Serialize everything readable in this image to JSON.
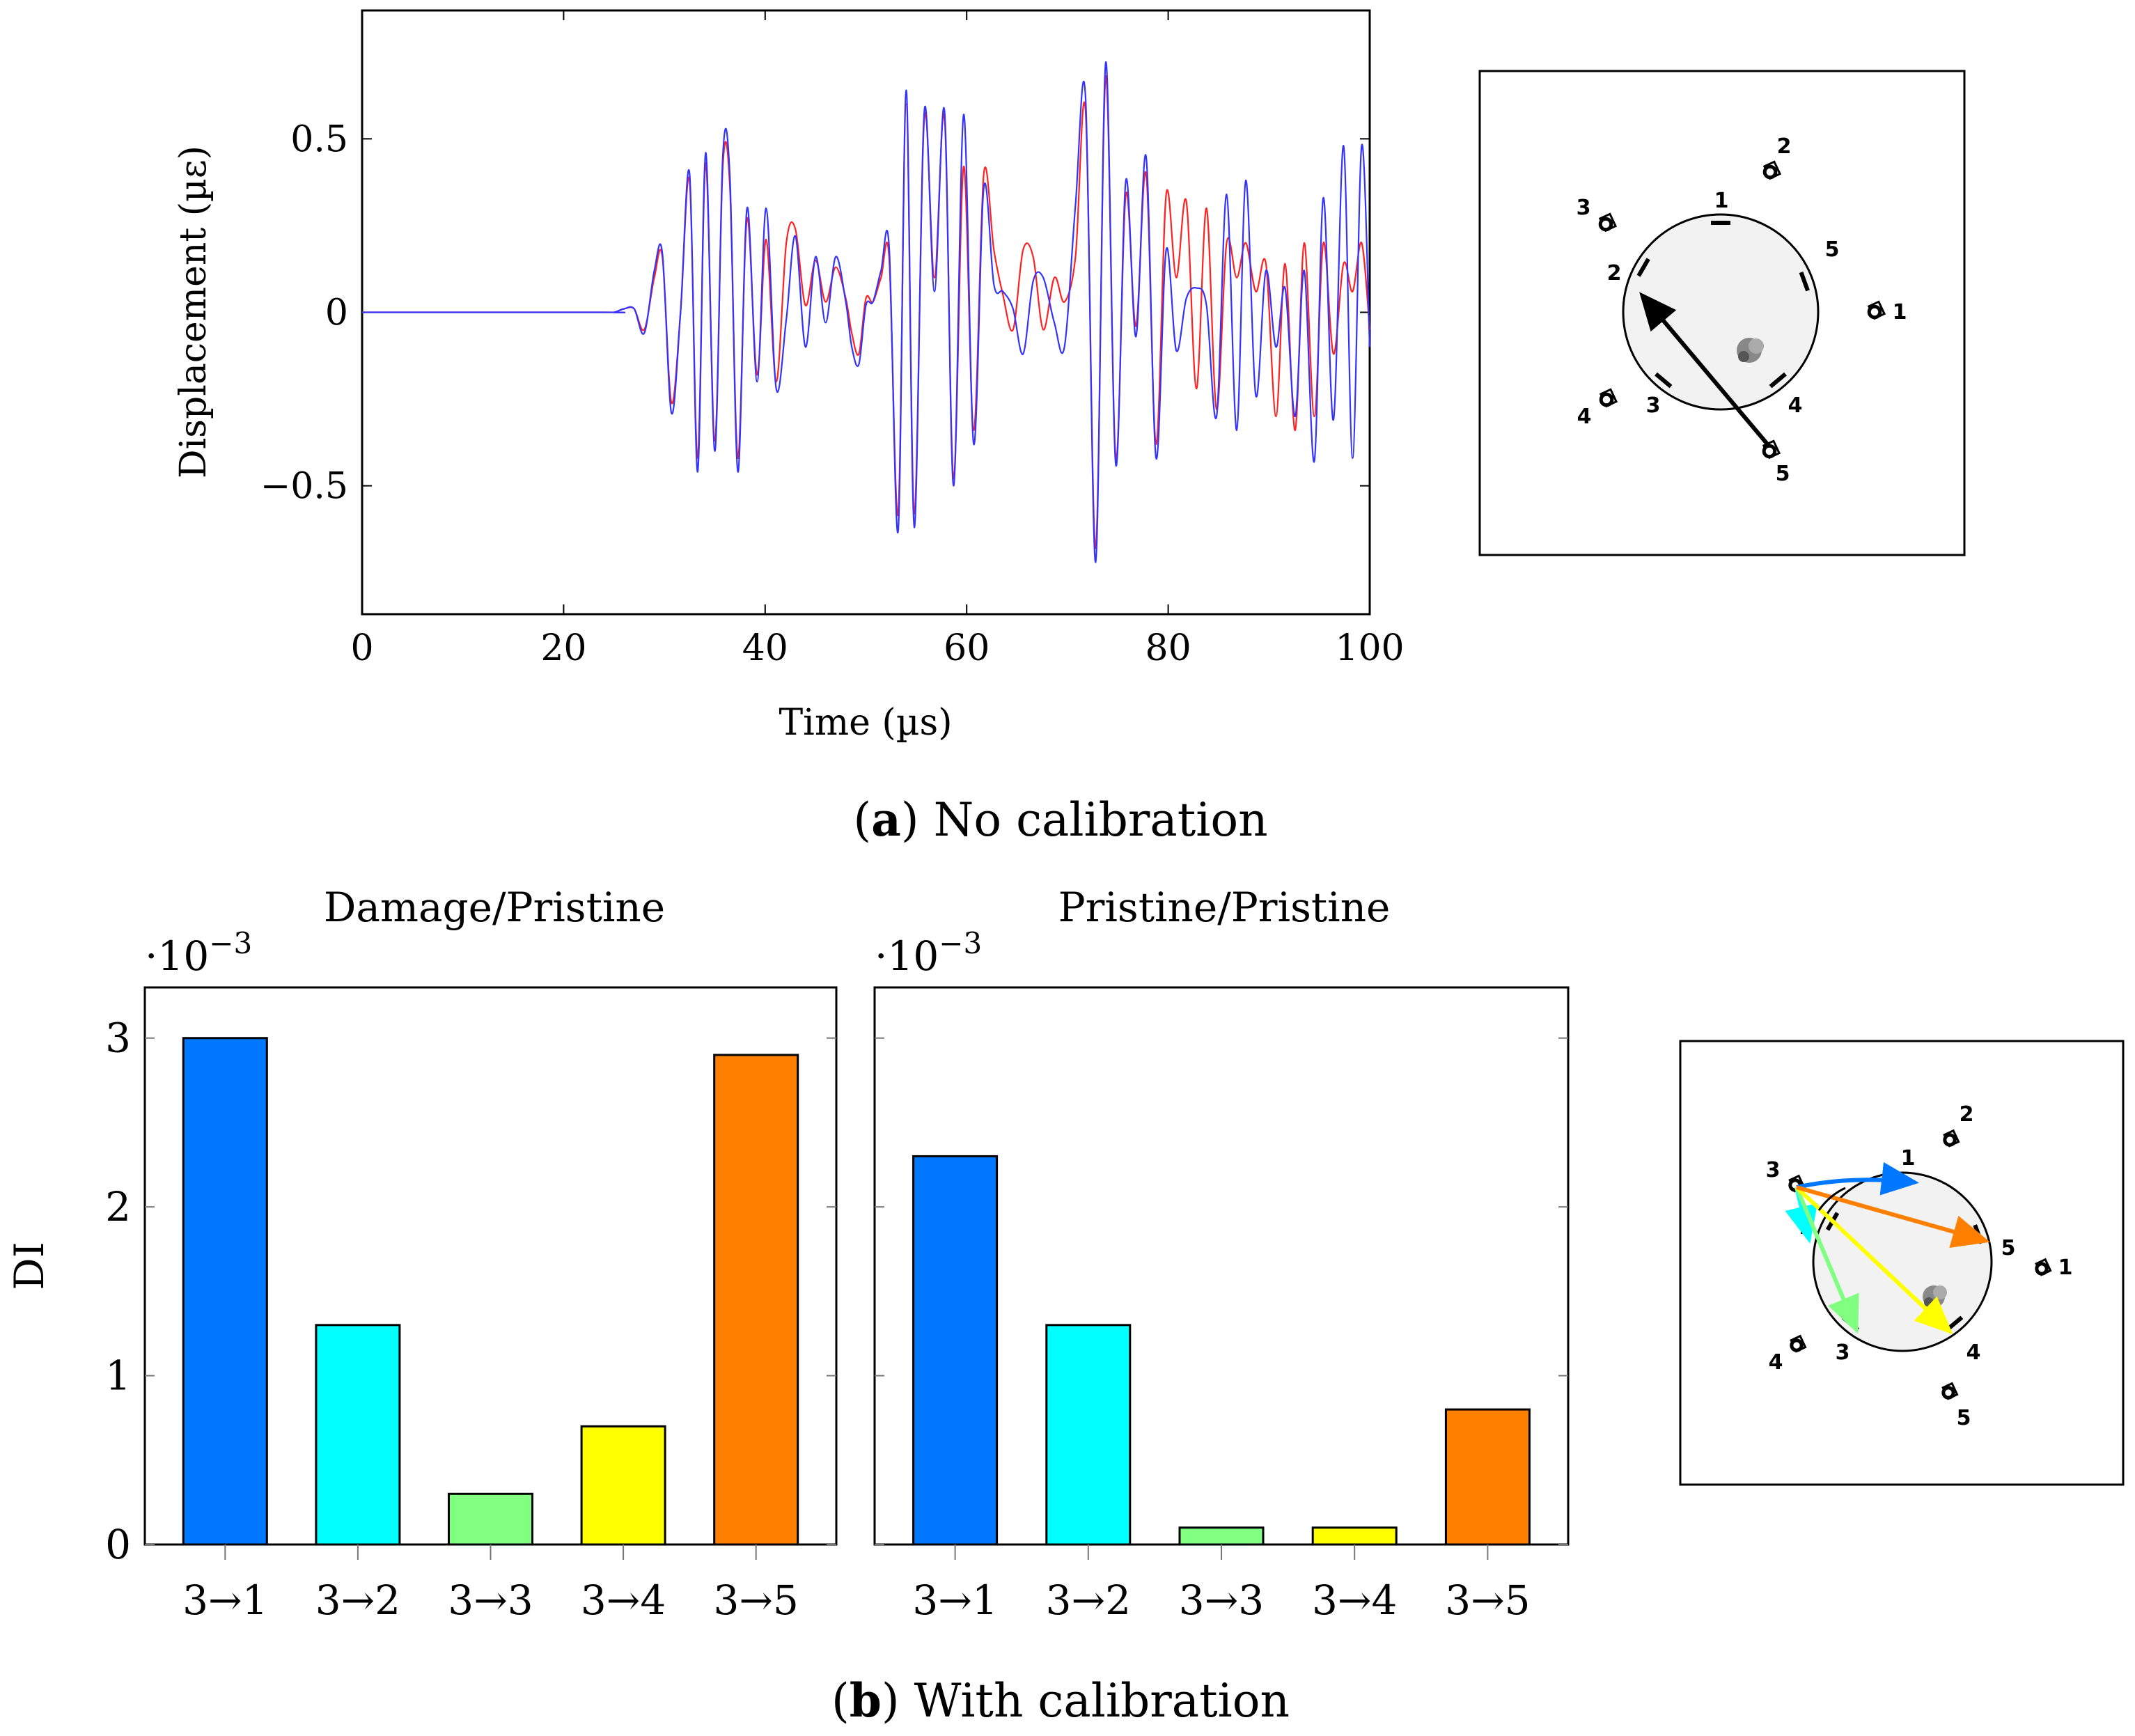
{
  "captions": {
    "a_letter": "a",
    "a_text": "No calibration",
    "b_letter": "b",
    "b_text": "With calibration"
  },
  "chart_data": [
    {
      "type": "line",
      "xlabel": "Time (µs)",
      "ylabel": "Displacement (µε)",
      "xlim": [
        0,
        100
      ],
      "ylim": [
        -0.87,
        0.87
      ],
      "xticks": [
        "0",
        "20",
        "40",
        "60",
        "80",
        "100"
      ],
      "yticks": [
        "0.5",
        "0",
        "−0.5"
      ],
      "grid": false,
      "series": [
        {
          "color": "#3333ff",
          "x": [
            0,
            24,
            25,
            26,
            27,
            28,
            29,
            29.8,
            30.7,
            31.6,
            32.5,
            33.3,
            34.1,
            35,
            35.8,
            36.5,
            37.3,
            38.2,
            39.2,
            40.1,
            41.1,
            42.1,
            43,
            44,
            45,
            46,
            47,
            48,
            48.6,
            49.3,
            50,
            50.7,
            51.5,
            52.3,
            53.2,
            54,
            54.8,
            55.8,
            56.8,
            57.8,
            58.7,
            59.7,
            60.7,
            61.7,
            62.7,
            63.6,
            64.6,
            65.6,
            66.6,
            67.6,
            68.7,
            69.7,
            70.8,
            71.8,
            72.8,
            73.8,
            74.8,
            75.8,
            76.8,
            77.8,
            78.8,
            79.8,
            80.8,
            81.8,
            82.8,
            83.8,
            84.8,
            85.8,
            86.8,
            87.7,
            88.7,
            89.7,
            90.7,
            91.6,
            92.6,
            93.5,
            94.5,
            95.4,
            96.4,
            97.4,
            98.3,
            99.2,
            100
          ],
          "y": [
            0,
            0,
            0,
            0.01,
            0.01,
            -0.06,
            0.12,
            0.17,
            -0.29,
            0,
            0.4,
            -0.46,
            0.46,
            -0.4,
            0.45,
            0.39,
            -0.46,
            0.3,
            -0.2,
            0.3,
            -0.22,
            -0.02,
            0.22,
            -0.1,
            0.16,
            -0.03,
            0.16,
            0.03,
            -0.1,
            -0.15,
            0.02,
            0.03,
            0.12,
            0.19,
            -0.63,
            0.64,
            -0.62,
            0.58,
            0.06,
            0.58,
            -0.5,
            0.57,
            -0.38,
            0.36,
            0.08,
            0.06,
            0.01,
            -0.12,
            0.09,
            0.1,
            -0.03,
            -0.1,
            0.31,
            0.62,
            -0.72,
            0.72,
            -0.44,
            0.38,
            -0.07,
            0.45,
            -0.42,
            0.18,
            -0.11,
            0.04,
            0.07,
            0.02,
            -0.3,
            0.34,
            -0.34,
            0.38,
            -0.24,
            0.12,
            -0.1,
            0.07,
            -0.3,
            0.12,
            -0.43,
            0.33,
            -0.31,
            0.48,
            -0.42,
            0.48,
            -0.1
          ]
        },
        {
          "color": "#ff2222",
          "x": [
            0,
            24,
            25,
            26,
            27,
            28,
            29,
            29.8,
            30.7,
            31.6,
            32.5,
            33.3,
            34.1,
            35,
            35.8,
            36.5,
            37.3,
            38.2,
            39.2,
            40.1,
            41.1,
            42.1,
            43,
            44,
            45,
            46,
            47,
            48,
            48.6,
            49.3,
            50,
            50.7,
            51.5,
            52.3,
            53.2,
            54,
            54.8,
            55.8,
            56.8,
            57.8,
            58.7,
            59.7,
            60.7,
            61.7,
            62.7,
            63.6,
            64.6,
            65.6,
            66.6,
            67.6,
            68.7,
            69.7,
            70.8,
            71.8,
            72.8,
            73.8,
            74.8,
            75.8,
            76.8,
            77.8,
            78.8,
            79.8,
            80.8,
            81.8,
            82.8,
            83.8,
            84.8,
            85.8,
            86.8,
            87.7,
            88.7,
            89.7,
            90.7,
            91.6,
            92.6,
            93.5,
            94.5,
            95.4,
            96.4,
            97.4,
            98.3,
            99.2,
            100
          ],
          "y": [
            0,
            0,
            0,
            0.01,
            0.01,
            -0.05,
            0.1,
            0.16,
            -0.26,
            0,
            0.38,
            -0.42,
            0.43,
            -0.37,
            0.42,
            0.36,
            -0.42,
            0.27,
            -0.18,
            0.21,
            -0.2,
            0.2,
            0.24,
            0.02,
            0.15,
            0.03,
            0.13,
            0.04,
            -0.06,
            -0.12,
            0.04,
            0.03,
            0.1,
            0.16,
            -0.58,
            0.6,
            -0.58,
            0.56,
            0.1,
            0.56,
            -0.48,
            0.42,
            -0.34,
            0.4,
            0.18,
            0.05,
            -0.05,
            0.18,
            0.16,
            -0.05,
            0.1,
            0.03,
            0.16,
            0.58,
            -0.68,
            0.68,
            -0.42,
            0.34,
            -0.04,
            0.4,
            -0.38,
            0.34,
            0.1,
            0.32,
            -0.22,
            0.3,
            -0.28,
            0.2,
            0.1,
            0.2,
            0.06,
            0.14,
            -0.3,
            0.14,
            -0.34,
            0.2,
            -0.3,
            0.2,
            -0.12,
            0.14,
            0.06,
            0.2,
            -0.05
          ]
        }
      ]
    },
    {
      "type": "bar",
      "title": "Damage/Pristine",
      "ylabel": "DI",
      "scale_label": "·10",
      "scale_exp": "−3",
      "categories": [
        "3→1",
        "3→2",
        "3→3",
        "3→4",
        "3→5"
      ],
      "values": [
        3.0,
        1.3,
        0.3,
        0.7,
        2.9
      ],
      "colors": [
        "#0077ff",
        "#00ffff",
        "#80ff80",
        "#ffff00",
        "#ff8000"
      ],
      "ylim": [
        0,
        3.3
      ],
      "yticks": [
        "0",
        "1",
        "2",
        "3"
      ]
    },
    {
      "type": "bar",
      "title": "Pristine/Pristine",
      "scale_label": "·10",
      "scale_exp": "−3",
      "categories": [
        "3→1",
        "3→2",
        "3→3",
        "3→4",
        "3→5"
      ],
      "values": [
        2.3,
        1.3,
        0.1,
        0.1,
        0.8
      ],
      "colors": [
        "#0077ff",
        "#00ffff",
        "#80ff80",
        "#ffff00",
        "#ff8000"
      ],
      "ylim": [
        0,
        3.3
      ]
    }
  ],
  "diagrams": {
    "a": {
      "ring_labels": [
        "1",
        "2",
        "3",
        "4",
        "5"
      ],
      "sensor_labels": [
        "1",
        "2",
        "3",
        "4",
        "5"
      ],
      "arrow_color": "#000000"
    },
    "b": {
      "ring_labels": [
        "1",
        "2",
        "3",
        "4",
        "5"
      ],
      "sensor_labels": [
        "1",
        "2",
        "3",
        "4",
        "5"
      ],
      "arrow_colors": [
        "#0077ff",
        "#00ffff",
        "#80ff80",
        "#ffff00",
        "#ff8000"
      ]
    }
  }
}
